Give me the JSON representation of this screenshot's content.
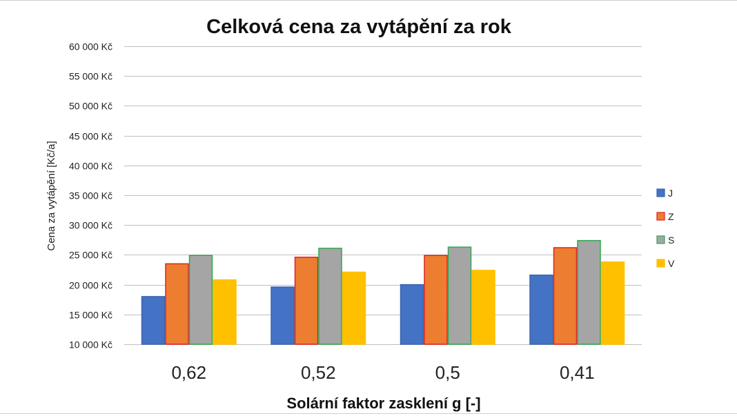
{
  "chart_data": {
    "type": "bar",
    "title": "Celková cena za vytápění za rok",
    "xlabel": "Solární faktor zasklení g [-]",
    "ylabel": "Cena za vytápění [Kč/a]",
    "categories": [
      "0,62",
      "0,52",
      "0,5",
      "0,41"
    ],
    "series": [
      {
        "name": "J",
        "values": [
          18000,
          19600,
          20000,
          21600
        ],
        "color": "#4472C4",
        "border": "#3a64b0"
      },
      {
        "name": "Z",
        "values": [
          23500,
          24600,
          24900,
          26200
        ],
        "color": "#ED7D31",
        "border": "#e02020"
      },
      {
        "name": "S",
        "values": [
          24900,
          26100,
          26300,
          27400
        ],
        "color": "#A5A5A5",
        "border": "#2fa84f"
      },
      {
        "name": "V",
        "values": [
          20800,
          22100,
          22400,
          23800
        ],
        "color": "#FFC000",
        "border": "#FFC000"
      }
    ],
    "ylim": [
      10000,
      60000
    ],
    "yticks": [
      {
        "value": 10000,
        "label": "10 000 Kč"
      },
      {
        "value": 15000,
        "label": "15 000 Kč"
      },
      {
        "value": 20000,
        "label": "20 000 Kč"
      },
      {
        "value": 25000,
        "label": "25 000 Kč"
      },
      {
        "value": 30000,
        "label": "30 000 Kč"
      },
      {
        "value": 35000,
        "label": "35 000 Kč"
      },
      {
        "value": 40000,
        "label": "40 000 Kč"
      },
      {
        "value": 45000,
        "label": "45 000 Kč"
      },
      {
        "value": 50000,
        "label": "50 000 Kč"
      },
      {
        "value": 55000,
        "label": "55 000 Kč"
      },
      {
        "value": 60000,
        "label": "60 000 Kč"
      }
    ],
    "grid": true,
    "legend_position": "right"
  },
  "colors": {
    "gridline": "#bfbfbf",
    "text": "#222222"
  }
}
